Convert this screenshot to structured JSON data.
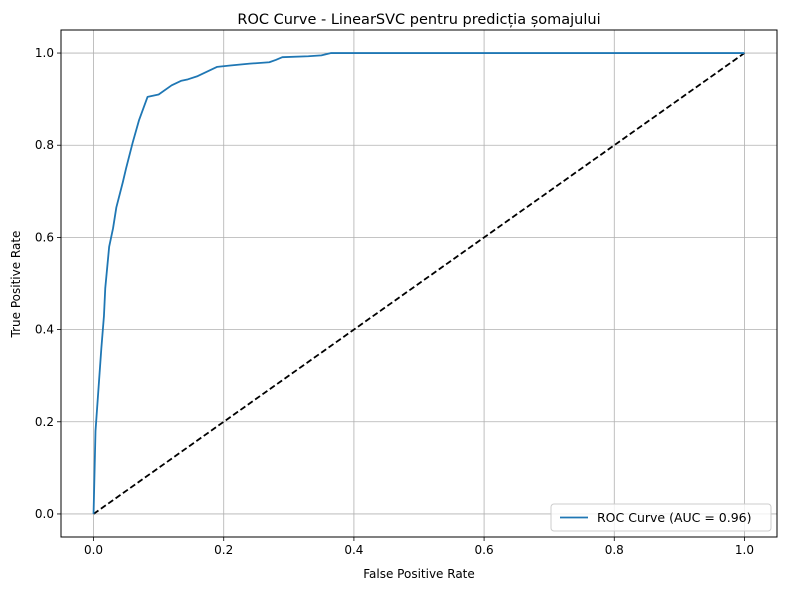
{
  "chart_data": {
    "type": "line",
    "title": "ROC Curve - LinearSVC pentru predicția șomajului",
    "xlabel": "False Positive Rate",
    "ylabel": "True Positive Rate",
    "xlim": [
      -0.05,
      1.05
    ],
    "ylim": [
      -0.05,
      1.05
    ],
    "xticks": [
      "0.0",
      "0.2",
      "0.4",
      "0.6",
      "0.8",
      "1.0"
    ],
    "yticks": [
      "0.0",
      "0.2",
      "0.4",
      "0.6",
      "0.8",
      "1.0"
    ],
    "grid": true,
    "legend_position": "lower-right",
    "series": [
      {
        "name": "ROC Curve (AUC = 0.96)",
        "color": "#1f77b4",
        "style": "solid",
        "x": [
          0.0,
          0.003,
          0.008,
          0.012,
          0.016,
          0.018,
          0.024,
          0.03,
          0.035,
          0.045,
          0.05,
          0.06,
          0.07,
          0.083,
          0.1,
          0.12,
          0.135,
          0.145,
          0.16,
          0.19,
          0.21,
          0.24,
          0.27,
          0.28,
          0.29,
          0.33,
          0.35,
          0.365,
          0.4,
          0.6,
          0.8,
          1.0
        ],
        "y": [
          0.0,
          0.18,
          0.28,
          0.36,
          0.43,
          0.49,
          0.58,
          0.62,
          0.665,
          0.72,
          0.75,
          0.805,
          0.855,
          0.905,
          0.91,
          0.93,
          0.94,
          0.943,
          0.95,
          0.97,
          0.973,
          0.977,
          0.98,
          0.985,
          0.991,
          0.993,
          0.995,
          1.0,
          1.0,
          1.0,
          1.0,
          1.0
        ]
      },
      {
        "name": "",
        "color": "#000000",
        "style": "dashed",
        "x": [
          0.0,
          1.0
        ],
        "y": [
          0.0,
          1.0
        ]
      }
    ]
  }
}
